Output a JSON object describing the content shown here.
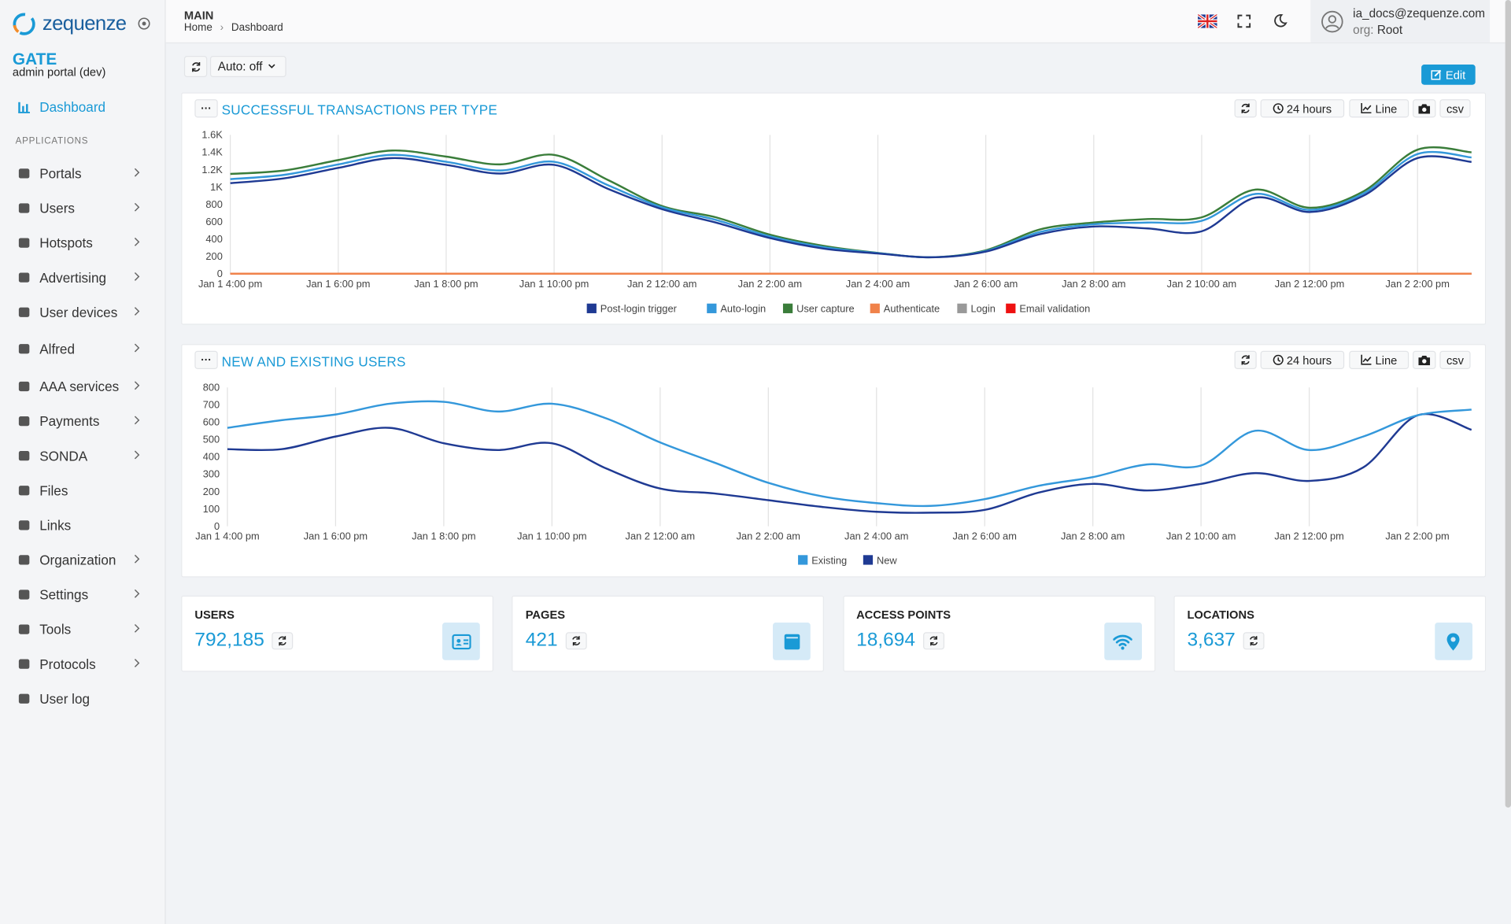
{
  "brand": {
    "logo": "zequenze",
    "app": "GATE",
    "subtitle": "admin portal (dev)"
  },
  "sidebar": {
    "dashboard": "Dashboard",
    "section": "APPLICATIONS",
    "items": [
      {
        "label": "Portals",
        "expandable": true
      },
      {
        "label": "Users",
        "expandable": true
      },
      {
        "label": "Hotspots",
        "expandable": true
      },
      {
        "label": "Advertising",
        "expandable": true
      },
      {
        "label": "User devices",
        "expandable": true
      },
      {
        "label": "Alfred",
        "expandable": true
      },
      {
        "label": "AAA services",
        "expandable": true
      },
      {
        "label": "Payments",
        "expandable": true
      },
      {
        "label": "SONDA",
        "expandable": true
      },
      {
        "label": "Files",
        "expandable": false
      },
      {
        "label": "Links",
        "expandable": false
      },
      {
        "label": "Organization",
        "expandable": true
      },
      {
        "label": "Settings",
        "expandable": true
      },
      {
        "label": "Tools",
        "expandable": true
      },
      {
        "label": "Protocols",
        "expandable": true
      },
      {
        "label": "User log",
        "expandable": false
      }
    ]
  },
  "header": {
    "section": "MAIN",
    "breadcrumb": [
      "Home",
      "Dashboard"
    ],
    "user": "ia_docs@zequenze.com",
    "org_label": "org:",
    "org": "Root"
  },
  "toolbar": {
    "auto": "Auto: off",
    "edit": "Edit"
  },
  "chart_data": [
    {
      "type": "line",
      "title": "SUCCESSFUL TRANSACTIONS PER TYPE",
      "range": "24 hours",
      "view": "Line",
      "export": "csv",
      "categories": [
        "Jan 1 4:00 pm",
        null,
        "Jan 1 6:00 pm",
        null,
        "Jan 1 8:00 pm",
        null,
        "Jan 1 10:00 pm",
        null,
        "Jan 2 12:00 am",
        null,
        "Jan 2 2:00 am",
        null,
        "Jan 2 4:00 am",
        null,
        "Jan 2 6:00 am",
        null,
        "Jan 2 8:00 am",
        null,
        "Jan 2 10:00 am",
        null,
        "Jan 2 12:00 pm",
        null,
        "Jan 2 2:00 pm",
        null
      ],
      "series": [
        {
          "name": "Post-login trigger",
          "color": "#1f3a93",
          "values": [
            1044,
            1100,
            1220,
            1333,
            1255,
            1155,
            1255,
            978,
            744,
            589,
            411,
            289,
            233,
            189,
            255,
            455,
            544,
            522,
            489,
            877,
            711,
            900,
            1333,
            1289
          ]
        },
        {
          "name": "Auto-login",
          "color": "#3498db",
          "values": [
            1090,
            1140,
            1260,
            1370,
            1290,
            1190,
            1290,
            1020,
            765,
            620,
            430,
            305,
            237,
            190,
            262,
            480,
            570,
            590,
            610,
            920,
            735,
            925,
            1380,
            1340
          ]
        },
        {
          "name": "User capture",
          "color": "#3a7d3a",
          "values": [
            1150,
            1190,
            1310,
            1420,
            1350,
            1260,
            1370,
            1080,
            780,
            650,
            450,
            320,
            240,
            190,
            270,
            510,
            590,
            630,
            650,
            970,
            760,
            950,
            1430,
            1400
          ]
        },
        {
          "name": "Authenticate",
          "color": "#f0824a",
          "values": [
            0,
            0,
            0,
            0,
            0,
            0,
            0,
            0,
            0,
            0,
            0,
            0,
            0,
            0,
            0,
            0,
            0,
            0,
            0,
            0,
            0,
            0,
            0,
            0
          ]
        },
        {
          "name": "Login",
          "color": "#999999",
          "values": [
            0,
            0,
            0,
            0,
            0,
            0,
            0,
            0,
            0,
            0,
            0,
            0,
            0,
            0,
            0,
            0,
            0,
            0,
            0,
            0,
            0,
            0,
            0,
            0
          ]
        },
        {
          "name": "Email validation",
          "color": "#ee1111",
          "values": [
            0,
            0,
            0,
            0,
            0,
            0,
            0,
            0,
            0,
            0,
            0,
            0,
            0,
            0,
            0,
            0,
            0,
            0,
            0,
            0,
            0,
            0,
            0,
            0
          ]
        }
      ],
      "ylim": [
        0,
        1600
      ],
      "yticks": [
        0,
        200,
        400,
        600,
        800,
        {
          "value": 1000,
          "label": "1K"
        },
        {
          "value": 1200,
          "label": "1.2K"
        },
        {
          "value": 1400,
          "label": "1.4K"
        },
        {
          "value": 1600,
          "label": "1.6K"
        }
      ],
      "grid": "x",
      "legend": "bottom"
    },
    {
      "type": "line",
      "title": "NEW AND EXISTING USERS",
      "range": "24 hours",
      "view": "Line",
      "export": "csv",
      "categories": [
        "Jan 1 4:00 pm",
        null,
        "Jan 1 6:00 pm",
        null,
        "Jan 1 8:00 pm",
        null,
        "Jan 1 10:00 pm",
        null,
        "Jan 2 12:00 am",
        null,
        "Jan 2 2:00 am",
        null,
        "Jan 2 4:00 am",
        null,
        "Jan 2 6:00 am",
        null,
        "Jan 2 8:00 am",
        null,
        "Jan 2 10:00 am",
        null,
        "Jan 2 12:00 pm",
        null,
        "Jan 2 2:00 pm",
        null
      ],
      "series": [
        {
          "name": "Existing",
          "color": "#3498db",
          "values": [
            567,
            611,
            644,
            706,
            717,
            661,
            706,
            622,
            483,
            367,
            250,
            172,
            133,
            117,
            156,
            233,
            283,
            356,
            350,
            550,
            439,
            517,
            639,
            672
          ]
        },
        {
          "name": "New",
          "color": "#1f3a93",
          "values": [
            444,
            444,
            517,
            567,
            478,
            439,
            478,
            333,
            217,
            189,
            150,
            111,
            83,
            78,
            94,
            194,
            244,
            206,
            244,
            306,
            261,
            339,
            639,
            556
          ]
        }
      ],
      "ylim": [
        0,
        800
      ],
      "yticks": [
        0,
        100,
        200,
        300,
        400,
        500,
        600,
        700,
        800
      ],
      "grid": "x",
      "legend": "bottom"
    }
  ],
  "stats": [
    {
      "label": "USERS",
      "value": "792,185",
      "icon": "id-card"
    },
    {
      "label": "PAGES",
      "value": "421",
      "icon": "page"
    },
    {
      "label": "ACCESS POINTS",
      "value": "18,694",
      "icon": "wifi"
    },
    {
      "label": "LOCATIONS",
      "value": "3,637",
      "icon": "pin"
    }
  ]
}
